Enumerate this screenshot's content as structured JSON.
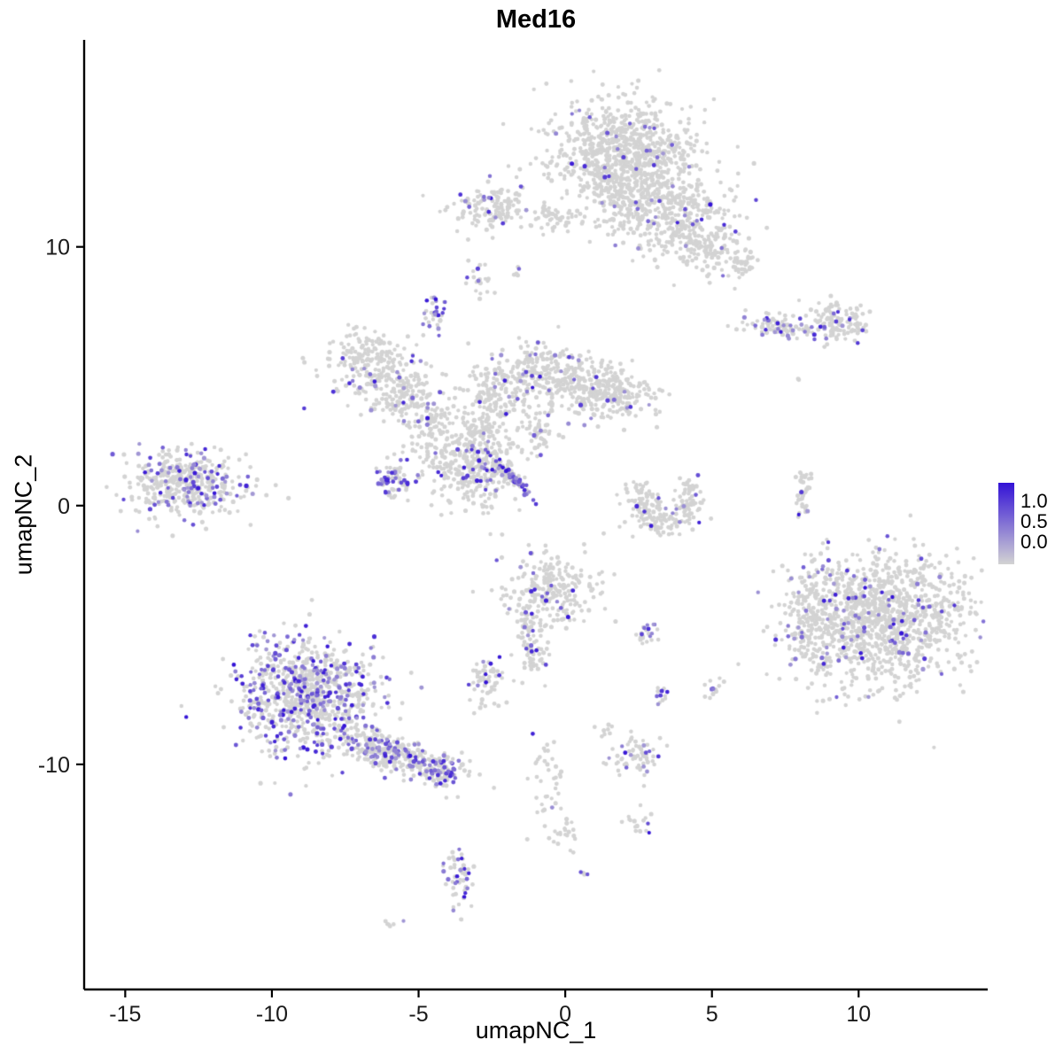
{
  "page": {
    "background": "#FFFFFF"
  },
  "chart_data": {
    "type": "scatter",
    "title": "Med16",
    "xlabel": "umapNC_1",
    "ylabel": "umapNC_2",
    "xticks": [
      -15,
      -10,
      -5,
      0,
      5,
      10
    ],
    "yticks": [
      -10,
      0,
      10
    ],
    "xlim": [
      -16.4,
      14.4
    ],
    "ylim": [
      -18.7,
      18.0
    ],
    "grid": false,
    "legend_position": "right",
    "point_color_low": "#D3D3D3",
    "point_color_high": "#3312D6",
    "legend": {
      "labels": [
        "1.0",
        "0.5",
        "0.0"
      ]
    },
    "clusters": [
      {
        "x": 2.0,
        "y": 13.6,
        "sx": 1.3,
        "sy": 1.05,
        "n": 850,
        "e": 0.035
      },
      {
        "x": 2.2,
        "y": 11.7,
        "sx": 0.6,
        "sy": 0.8,
        "n": 160,
        "e": 0.05
      },
      {
        "x": 3.9,
        "y": 11.2,
        "sx": 0.9,
        "sy": 0.8,
        "n": 260,
        "e": 0.05
      },
      {
        "x": 5.0,
        "y": 10.1,
        "sx": 0.6,
        "sy": 0.6,
        "n": 120,
        "e": 0.04
      },
      {
        "x": 6.1,
        "y": 9.4,
        "sx": 0.3,
        "sy": 0.25,
        "n": 35,
        "e": 0.05
      },
      {
        "x": -2.6,
        "y": 11.6,
        "sx": 0.75,
        "sy": 0.4,
        "n": 140,
        "e": 0.09
      },
      {
        "x": -0.3,
        "y": 11.1,
        "sx": 0.45,
        "sy": 0.25,
        "n": 45,
        "e": 0.02
      },
      {
        "x": -2.9,
        "y": 8.7,
        "sx": 0.2,
        "sy": 0.35,
        "n": 22,
        "e": 0.05
      },
      {
        "x": -4.5,
        "y": 7.5,
        "sx": 0.2,
        "sy": 0.33,
        "n": 34,
        "e": 0.55
      },
      {
        "x": 7.5,
        "y": 6.9,
        "sx": 0.75,
        "sy": 0.22,
        "n": 90,
        "e": 0.22,
        "r": -8
      },
      {
        "x": 9.3,
        "y": 7.1,
        "sx": 0.55,
        "sy": 0.45,
        "n": 120,
        "e": 0.07
      },
      {
        "x": -6.8,
        "y": 5.6,
        "sx": 0.7,
        "sy": 0.7,
        "n": 190,
        "e": 0.12
      },
      {
        "x": -5.5,
        "y": 4.3,
        "sx": 0.55,
        "sy": 0.6,
        "n": 140,
        "e": 0.07
      },
      {
        "x": -4.6,
        "y": 2.9,
        "sx": 0.45,
        "sy": 0.75,
        "n": 120,
        "e": 0.05
      },
      {
        "x": -3.2,
        "y": 1.4,
        "sx": 0.8,
        "sy": 0.85,
        "n": 300,
        "e": 0.1
      },
      {
        "x": -5.8,
        "y": 1.0,
        "sx": 0.3,
        "sy": 0.4,
        "n": 60,
        "e": 0.45
      },
      {
        "x": -2.2,
        "y": 4.3,
        "sx": 0.65,
        "sy": 0.75,
        "n": 170,
        "e": 0.05
      },
      {
        "x": -1.0,
        "y": 5.3,
        "sx": 0.5,
        "sy": 0.5,
        "n": 120,
        "e": 0.07
      },
      {
        "x": 0.3,
        "y": 4.7,
        "sx": 0.75,
        "sy": 0.6,
        "n": 200,
        "e": 0.04
      },
      {
        "x": 1.8,
        "y": 4.3,
        "sx": 0.65,
        "sy": 0.5,
        "n": 170,
        "e": 0.06
      },
      {
        "x": -1.9,
        "y": 1.2,
        "sx": 0.52,
        "sy": 0.08,
        "n": 95,
        "e": 0.55,
        "r": -49
      },
      {
        "x": -2.9,
        "y": 2.9,
        "sx": 0.35,
        "sy": 0.6,
        "n": 80,
        "e": 0.05
      },
      {
        "x": -0.9,
        "y": 2.7,
        "sx": 0.3,
        "sy": 0.4,
        "n": 45,
        "e": 0.04
      },
      {
        "x": -13.0,
        "y": 0.9,
        "sx": 1.0,
        "sy": 0.65,
        "n": 420,
        "e": 0.2
      },
      {
        "x": 2.6,
        "y": 0.1,
        "sx": 0.3,
        "sy": 0.55,
        "n": 70,
        "e": 0.04
      },
      {
        "x": 3.4,
        "y": -0.5,
        "sx": 0.5,
        "sy": 0.35,
        "n": 80,
        "e": 0.04
      },
      {
        "x": 4.2,
        "y": 0.3,
        "sx": 0.3,
        "sy": 0.45,
        "n": 55,
        "e": 0.05
      },
      {
        "x": 8.1,
        "y": 0.5,
        "sx": 0.14,
        "sy": 0.65,
        "n": 40,
        "e": 0.08
      },
      {
        "x": 10.8,
        "y": -4.4,
        "sx": 1.45,
        "sy": 1.25,
        "n": 1150,
        "e": 0.07
      },
      {
        "x": 8.3,
        "y": -4.3,
        "sx": 0.5,
        "sy": 1.0,
        "n": 160,
        "e": 0.12
      },
      {
        "x": -0.4,
        "y": -3.2,
        "sx": 0.75,
        "sy": 0.7,
        "n": 240,
        "e": 0.07
      },
      {
        "x": -1.2,
        "y": -4.8,
        "sx": 0.3,
        "sy": 0.55,
        "n": 55,
        "e": 0.1
      },
      {
        "x": -1.0,
        "y": -6.0,
        "sx": 0.25,
        "sy": 0.4,
        "n": 30,
        "e": 0.12
      },
      {
        "x": -2.7,
        "y": -6.9,
        "sx": 0.33,
        "sy": 0.5,
        "n": 60,
        "e": 0.15
      },
      {
        "x": 2.8,
        "y": -4.9,
        "sx": 0.2,
        "sy": 0.3,
        "n": 22,
        "e": 0.3
      },
      {
        "x": 3.3,
        "y": -7.4,
        "sx": 0.15,
        "sy": 0.2,
        "n": 12,
        "e": 0.25
      },
      {
        "x": 5.0,
        "y": -7.1,
        "sx": 0.2,
        "sy": 0.25,
        "n": 14,
        "e": 0.2
      },
      {
        "x": -8.8,
        "y": -7.4,
        "sx": 1.15,
        "sy": 1.05,
        "n": 850,
        "e": 0.28
      },
      {
        "x": -5.9,
        "y": -9.6,
        "sx": 0.85,
        "sy": 0.32,
        "n": 280,
        "e": 0.3,
        "r": -22
      },
      {
        "x": -4.2,
        "y": -10.3,
        "sx": 0.4,
        "sy": 0.3,
        "n": 90,
        "e": 0.35
      },
      {
        "x": 2.3,
        "y": -9.8,
        "sx": 0.42,
        "sy": 0.38,
        "n": 65,
        "e": 0.15
      },
      {
        "x": -0.6,
        "y": -10.6,
        "sx": 0.3,
        "sy": 0.9,
        "n": 40,
        "e": 0.1
      },
      {
        "x": 0.0,
        "y": -12.7,
        "sx": 0.3,
        "sy": 0.3,
        "n": 20,
        "e": 0.05
      },
      {
        "x": 2.5,
        "y": -12.3,
        "sx": 0.22,
        "sy": 0.28,
        "n": 18,
        "e": 0.06
      },
      {
        "x": -3.6,
        "y": -14.4,
        "sx": 0.25,
        "sy": 0.6,
        "n": 55,
        "e": 0.3
      },
      {
        "x": 0.6,
        "y": -14.2,
        "sx": 0.08,
        "sy": 0.08,
        "n": 4,
        "e": 0.6
      },
      {
        "x": -6.0,
        "y": -16.1,
        "sx": 0.15,
        "sy": 0.1,
        "n": 6,
        "e": 0.3
      },
      {
        "x": 8.0,
        "y": 4.9,
        "sx": 0.07,
        "sy": 0.07,
        "n": 2,
        "e": 0
      },
      {
        "x": -1.7,
        "y": 8.9,
        "sx": 0.15,
        "sy": 0.15,
        "n": 5,
        "e": 0.1
      },
      {
        "x": 1.3,
        "y": -8.6,
        "sx": 0.2,
        "sy": 0.2,
        "n": 8,
        "e": 0.1
      }
    ]
  }
}
